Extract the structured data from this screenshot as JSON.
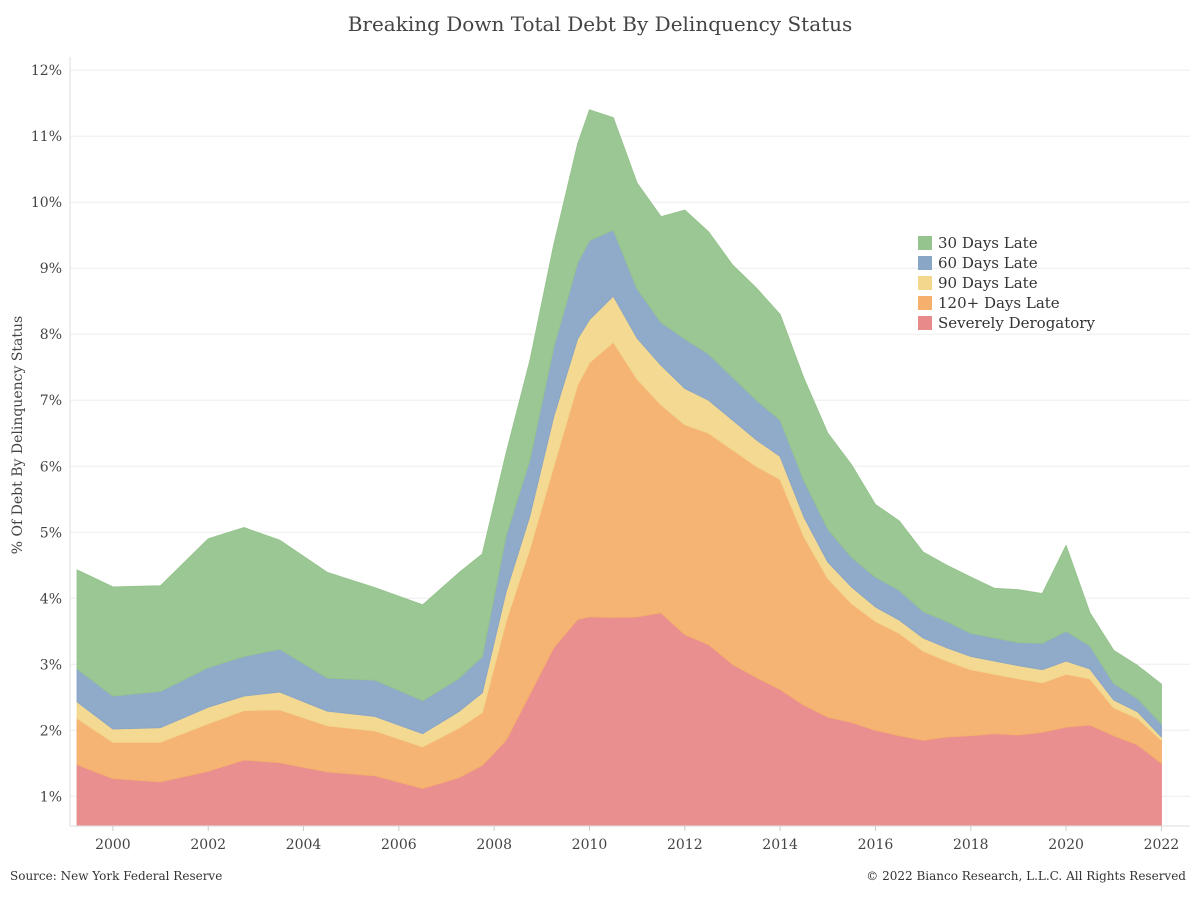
{
  "chart_data": {
    "type": "area",
    "stacked": true,
    "title": "Breaking Down Total Debt By Delinquency Status",
    "ylabel": "% Of Debt By Delinquency Status",
    "xlabel": "",
    "y_tick_labels": [
      "1%",
      "2%",
      "3%",
      "4%",
      "5%",
      "6%",
      "7%",
      "8%",
      "9%",
      "10%",
      "11%",
      "12%"
    ],
    "x_tick_labels": [
      "2000",
      "2002",
      "2004",
      "2006",
      "2008",
      "2010",
      "2012",
      "2014",
      "2016",
      "2018",
      "2020",
      "2022"
    ],
    "xlim": [
      1999.1,
      2022.6
    ],
    "ylim": [
      0.55,
      12.2
    ],
    "grid": "horizontal",
    "legend_position": "right",
    "x": [
      1999.25,
      2000.0,
      2001.0,
      2002.0,
      2002.75,
      2003.5,
      2004.5,
      2005.5,
      2006.5,
      2007.25,
      2007.75,
      2008.25,
      2008.75,
      2009.25,
      2009.75,
      2010.0,
      2010.5,
      2011.0,
      2011.5,
      2012.0,
      2012.5,
      2013.0,
      2013.5,
      2014.0,
      2014.5,
      2015.0,
      2015.5,
      2016.0,
      2016.5,
      2017.0,
      2017.5,
      2018.0,
      2018.5,
      2019.0,
      2019.5,
      2020.0,
      2020.5,
      2021.0,
      2021.5,
      2022.0
    ],
    "series": [
      {
        "name": "Severely Derogatory",
        "color": "#e8898a",
        "values": [
          1.48,
          1.27,
          1.22,
          1.38,
          1.55,
          1.51,
          1.37,
          1.31,
          1.12,
          1.28,
          1.47,
          1.85,
          2.55,
          3.25,
          3.68,
          3.72,
          3.71,
          3.72,
          3.78,
          3.45,
          3.3,
          3.0,
          2.8,
          2.62,
          2.38,
          2.2,
          2.12,
          2.0,
          1.92,
          1.85,
          1.9,
          1.92,
          1.95,
          1.93,
          1.97,
          2.05,
          2.08,
          1.92,
          1.78,
          1.5
        ]
      },
      {
        "name": "120+ Days Late",
        "color": "#f4b06c",
        "values": [
          0.7,
          0.55,
          0.6,
          0.72,
          0.75,
          0.8,
          0.7,
          0.68,
          0.63,
          0.75,
          0.8,
          1.8,
          2.2,
          2.75,
          3.55,
          3.85,
          4.17,
          3.6,
          3.15,
          3.18,
          3.2,
          3.25,
          3.2,
          3.18,
          2.55,
          2.1,
          1.8,
          1.65,
          1.55,
          1.35,
          1.15,
          1.0,
          0.9,
          0.85,
          0.75,
          0.8,
          0.7,
          0.42,
          0.4,
          0.35
        ]
      },
      {
        "name": "90 Days Late",
        "color": "#f2d78c",
        "values": [
          0.25,
          0.2,
          0.22,
          0.25,
          0.22,
          0.27,
          0.22,
          0.22,
          0.2,
          0.25,
          0.3,
          0.45,
          0.5,
          0.75,
          0.7,
          0.65,
          0.7,
          0.62,
          0.6,
          0.55,
          0.5,
          0.45,
          0.4,
          0.35,
          0.3,
          0.25,
          0.25,
          0.22,
          0.2,
          0.2,
          0.2,
          0.2,
          0.2,
          0.2,
          0.2,
          0.2,
          0.15,
          0.12,
          0.1,
          0.05
        ]
      },
      {
        "name": "60 Days Late",
        "color": "#8aa6c6",
        "values": [
          0.5,
          0.5,
          0.55,
          0.6,
          0.6,
          0.65,
          0.5,
          0.55,
          0.5,
          0.5,
          0.55,
          0.85,
          0.85,
          1.05,
          1.15,
          1.2,
          1.0,
          0.75,
          0.65,
          0.75,
          0.7,
          0.65,
          0.6,
          0.55,
          0.55,
          0.5,
          0.45,
          0.45,
          0.45,
          0.4,
          0.4,
          0.35,
          0.35,
          0.35,
          0.4,
          0.45,
          0.35,
          0.25,
          0.2,
          0.2
        ]
      },
      {
        "name": "30 Days Late",
        "color": "#96c48e",
        "values": [
          1.5,
          1.65,
          1.6,
          1.95,
          1.95,
          1.65,
          1.6,
          1.4,
          1.45,
          1.6,
          1.55,
          1.25,
          1.5,
          1.55,
          1.8,
          1.98,
          1.7,
          1.6,
          1.6,
          1.95,
          1.85,
          1.7,
          1.7,
          1.6,
          1.55,
          1.45,
          1.4,
          1.1,
          1.05,
          0.9,
          0.85,
          0.85,
          0.75,
          0.8,
          0.75,
          1.3,
          0.5,
          0.5,
          0.5,
          0.6
        ]
      }
    ]
  },
  "footer": {
    "source": "Source: New York Federal Reserve",
    "copyright": "© 2022 Bianco Research, L.L.C. All Rights Reserved"
  }
}
